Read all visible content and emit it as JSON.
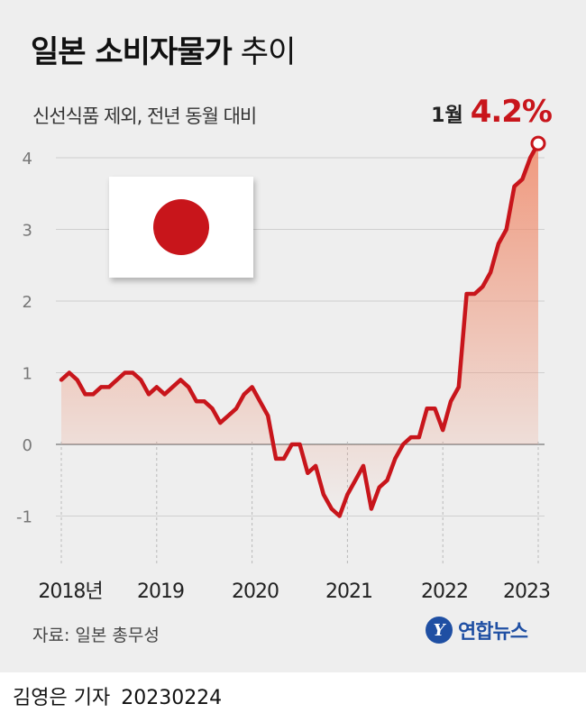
{
  "title": {
    "main": "일본 소비자물가",
    "suffix": "추이"
  },
  "subtitle": "신선식품 제외, 전년 동월 대비",
  "callout": {
    "label": "1월",
    "value": "4.2%"
  },
  "source": "자료: 일본 총무성",
  "logo": {
    "mark": "Y",
    "name": "연합뉴스"
  },
  "credit": {
    "author": "김영은 기자",
    "date": "20230224"
  },
  "colors": {
    "line": "#c8151b",
    "area_top": "#f08a6a",
    "background": "#eeeeee"
  },
  "icons": {
    "flag": "japan-flag-icon"
  },
  "chart_data": {
    "type": "area",
    "title": "일본 소비자물가 추이",
    "subtitle": "신선식품 제외, 전년 동월 대비",
    "ylim": [
      -1.5,
      4.3
    ],
    "yticks": [
      -1,
      0,
      1,
      2,
      3,
      4
    ],
    "ytick_labels": [
      "-1",
      "0",
      "1",
      "2",
      "3",
      "4"
    ],
    "xtick_labels": [
      "2018년",
      "2019",
      "2020",
      "2021",
      "2022",
      "2023"
    ],
    "grid": true,
    "series": [
      {
        "x": [
          "2018-01",
          "2018-02",
          "2018-03",
          "2018-04",
          "2018-05",
          "2018-06",
          "2018-07",
          "2018-08",
          "2018-09",
          "2018-10",
          "2018-11",
          "2018-12",
          "2019-01",
          "2019-02",
          "2019-03",
          "2019-04",
          "2019-05",
          "2019-06",
          "2019-07",
          "2019-08",
          "2019-09",
          "2019-10",
          "2019-11",
          "2019-12",
          "2020-01",
          "2020-02",
          "2020-03",
          "2020-04",
          "2020-05",
          "2020-06",
          "2020-07",
          "2020-08",
          "2020-09",
          "2020-10",
          "2020-11",
          "2020-12",
          "2021-01",
          "2021-02",
          "2021-03",
          "2021-04",
          "2021-05",
          "2021-06",
          "2021-07",
          "2021-08",
          "2021-09",
          "2021-10",
          "2021-11",
          "2021-12",
          "2022-01",
          "2022-02",
          "2022-03",
          "2022-04",
          "2022-05",
          "2022-06",
          "2022-07",
          "2022-08",
          "2022-09",
          "2022-10",
          "2022-11",
          "2022-12",
          "2023-01"
        ],
        "values": [
          0.9,
          1.0,
          0.9,
          0.7,
          0.7,
          0.8,
          0.8,
          0.9,
          1.0,
          1.0,
          0.9,
          0.7,
          0.8,
          0.7,
          0.8,
          0.9,
          0.8,
          0.6,
          0.6,
          0.5,
          0.3,
          0.4,
          0.5,
          0.7,
          0.8,
          0.6,
          0.4,
          -0.2,
          -0.2,
          0.0,
          0.0,
          -0.4,
          -0.3,
          -0.7,
          -0.9,
          -1.0,
          -0.7,
          -0.5,
          -0.3,
          -0.9,
          -0.6,
          -0.5,
          -0.2,
          0.0,
          0.1,
          0.1,
          0.5,
          0.5,
          0.2,
          0.6,
          0.8,
          2.1,
          2.1,
          2.2,
          2.4,
          2.8,
          3.0,
          3.6,
          3.7,
          4.0,
          4.2
        ]
      }
    ],
    "end_marker": {
      "x": "2023-01",
      "y": 4.2
    }
  }
}
